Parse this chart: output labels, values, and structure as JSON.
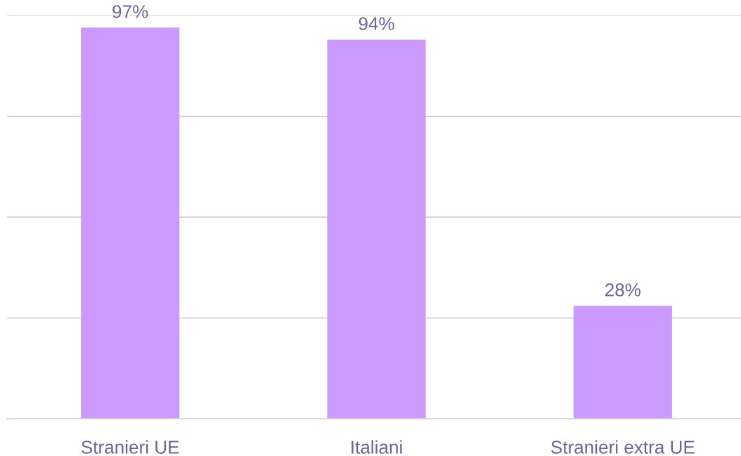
{
  "chart_data": {
    "type": "bar",
    "categories": [
      "Stranieri UE",
      "Italiani",
      "Stranieri extra UE"
    ],
    "values": [
      97,
      94,
      28
    ],
    "color": "#cc99ff",
    "value_labels": [
      "97%",
      "94%",
      "28%"
    ],
    "ylim": [
      0,
      100
    ],
    "yticks": [
      {
        "value": 0,
        "label": null
      },
      {
        "value": 25,
        "label": null
      },
      {
        "value": 50,
        "label": null
      },
      {
        "value": 75,
        "label": null
      },
      {
        "value": 100,
        "label": null
      }
    ],
    "grid": "y",
    "tick_labels": "x"
  }
}
